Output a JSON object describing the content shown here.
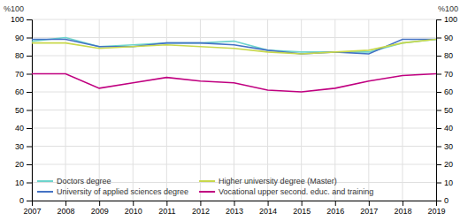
{
  "chart_data": {
    "type": "line",
    "x": [
      2007,
      2008,
      2009,
      2010,
      2011,
      2012,
      2013,
      2014,
      2015,
      2016,
      2017,
      2018,
      2019
    ],
    "series": [
      {
        "name": "Doctors degree",
        "color": "#6dd4cc",
        "values": [
          88,
          90,
          85,
          86,
          87,
          87,
          88,
          83,
          82,
          82,
          82,
          87,
          89
        ]
      },
      {
        "name": "University of applied sciences degree",
        "color": "#4472c4",
        "values": [
          89,
          89,
          85,
          85,
          87,
          87,
          86,
          83,
          81,
          82,
          81,
          89,
          89
        ]
      },
      {
        "name": "Higher university degree (Master)",
        "color": "#c8d84b",
        "values": [
          87,
          87,
          84,
          85,
          86,
          85,
          84,
          82,
          81,
          82,
          83,
          87,
          89
        ]
      },
      {
        "name": "Vocational upper second. educ. and training",
        "color": "#c00080",
        "values": [
          70,
          70,
          62,
          65,
          68,
          66,
          65,
          61,
          60,
          62,
          66,
          69,
          70
        ]
      }
    ],
    "xlim": [
      2007,
      2019
    ],
    "xticks": [
      2007,
      2008,
      2009,
      2010,
      2011,
      2012,
      2013,
      2014,
      2015,
      2016,
      2017,
      2018,
      2019
    ],
    "ylim": [
      0,
      100
    ],
    "yticks": [
      0,
      10,
      20,
      30,
      40,
      50,
      60,
      70,
      80,
      90,
      100
    ],
    "y2lim": [
      0,
      100
    ],
    "y2ticks": [
      0,
      10,
      20,
      30,
      40,
      50,
      60,
      70,
      80,
      90,
      100
    ],
    "ylabel": "%100",
    "y2label": "%100",
    "grid": true,
    "legend": "lower left"
  }
}
